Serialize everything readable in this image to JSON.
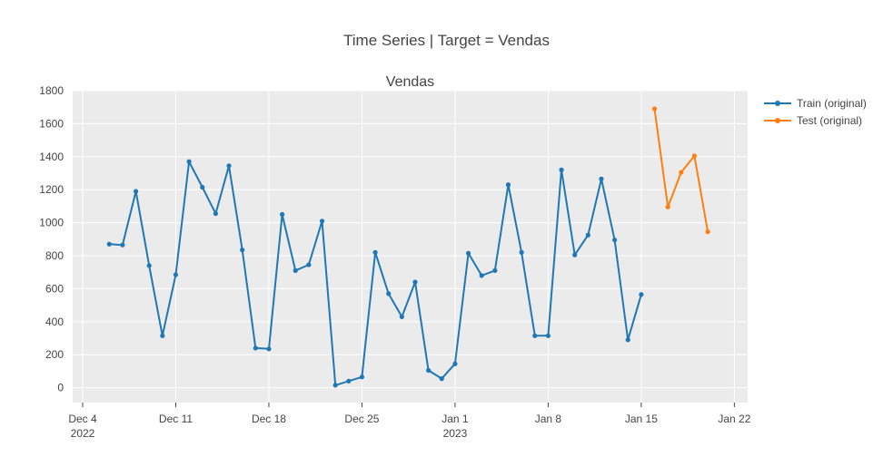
{
  "chart_data": {
    "type": "line",
    "title": "Time Series | Target = Vendas",
    "subtitle": "Vendas",
    "xlabel": "",
    "ylabel": "",
    "ylim": [
      -90,
      1800
    ],
    "xlim": [
      "2022-12-04",
      "2023-01-23"
    ],
    "grid": true,
    "legend_position": "top-right",
    "y_ticks": [
      0,
      200,
      400,
      600,
      800,
      1000,
      1200,
      1400,
      1600,
      1800
    ],
    "x_ticks": [
      {
        "date": "2022-12-04",
        "label": "Dec 4",
        "sublabel": "2022"
      },
      {
        "date": "2022-12-11",
        "label": "Dec 11",
        "sublabel": ""
      },
      {
        "date": "2022-12-18",
        "label": "Dec 18",
        "sublabel": ""
      },
      {
        "date": "2022-12-25",
        "label": "Dec 25",
        "sublabel": ""
      },
      {
        "date": "2023-01-01",
        "label": "Jan 1",
        "sublabel": "2023"
      },
      {
        "date": "2023-01-08",
        "label": "Jan 8",
        "sublabel": ""
      },
      {
        "date": "2023-01-15",
        "label": "Jan 15",
        "sublabel": ""
      },
      {
        "date": "2023-01-22",
        "label": "Jan 22",
        "sublabel": ""
      }
    ],
    "series": [
      {
        "name": "Train (original)",
        "color": "#1f77b4",
        "x": [
          "2022-12-06",
          "2022-12-07",
          "2022-12-08",
          "2022-12-09",
          "2022-12-10",
          "2022-12-11",
          "2022-12-12",
          "2022-12-13",
          "2022-12-14",
          "2022-12-15",
          "2022-12-16",
          "2022-12-17",
          "2022-12-18",
          "2022-12-19",
          "2022-12-20",
          "2022-12-21",
          "2022-12-22",
          "2022-12-23",
          "2022-12-24",
          "2022-12-25",
          "2022-12-26",
          "2022-12-27",
          "2022-12-28",
          "2022-12-29",
          "2022-12-30",
          "2022-12-31",
          "2023-01-01",
          "2023-01-02",
          "2023-01-03",
          "2023-01-04",
          "2023-01-05",
          "2023-01-06",
          "2023-01-07",
          "2023-01-08",
          "2023-01-09",
          "2023-01-10",
          "2023-01-11",
          "2023-01-12",
          "2023-01-13",
          "2023-01-14",
          "2023-01-15"
        ],
        "values": [
          870,
          865,
          1190,
          740,
          315,
          685,
          1370,
          1215,
          1055,
          1345,
          835,
          240,
          235,
          1050,
          710,
          745,
          1010,
          15,
          40,
          65,
          820,
          570,
          430,
          640,
          105,
          55,
          145,
          815,
          680,
          710,
          1230,
          820,
          315,
          315,
          1320,
          805,
          925,
          1265,
          895,
          290,
          565
        ]
      },
      {
        "name": "Test (original)",
        "color": "#ff7f0e",
        "x": [
          "2023-01-16",
          "2023-01-17",
          "2023-01-18",
          "2023-01-19",
          "2023-01-20"
        ],
        "values": [
          1690,
          1095,
          1305,
          1405,
          945
        ]
      }
    ]
  }
}
